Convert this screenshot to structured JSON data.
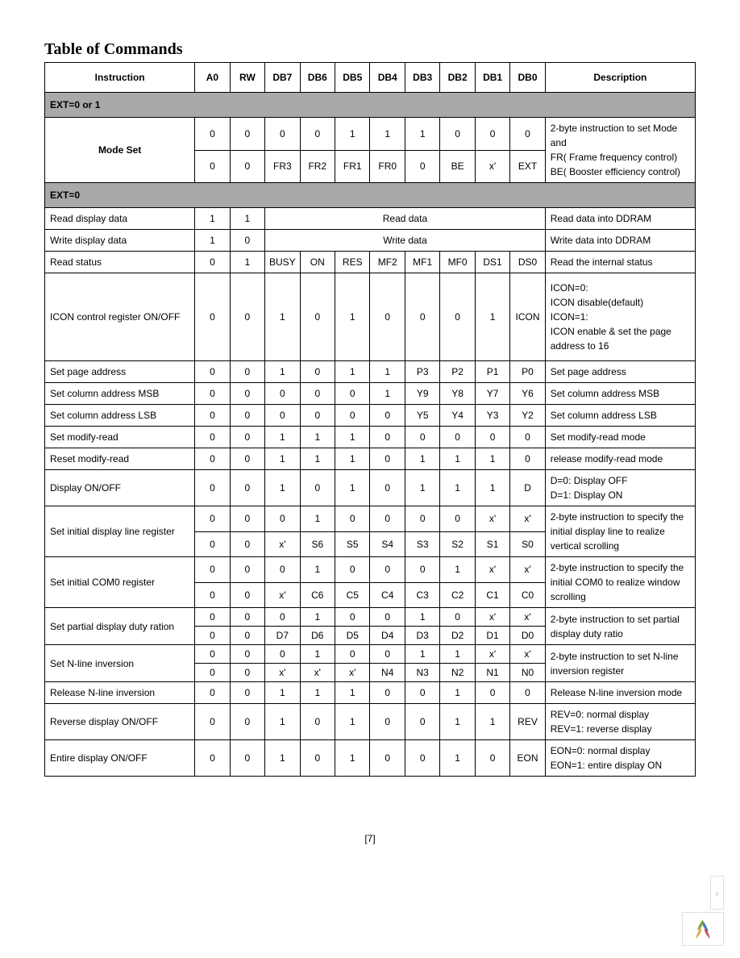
{
  "title": "Table of Commands",
  "page_number": "[7]",
  "headers": [
    "Instruction",
    "A0",
    "RW",
    "DB7",
    "DB6",
    "DB5",
    "DB4",
    "DB3",
    "DB2",
    "DB1",
    "DB0",
    "Description"
  ],
  "section1": "EXT=0 or 1",
  "mode_set": {
    "label": "Mode Set",
    "row1": [
      "0",
      "0",
      "0",
      "0",
      "1",
      "1",
      "1",
      "0",
      "0",
      "0"
    ],
    "row2": [
      "0",
      "0",
      "FR3",
      "FR2",
      "FR1",
      "FR0",
      "0",
      "BE",
      "x'",
      "EXT"
    ],
    "desc": "2-byte instruction to set Mode and\nFR( Frame frequency control)\nBE( Booster efficiency control)"
  },
  "section2": "EXT=0",
  "rows": [
    {
      "instr": "Read display data",
      "a0": "1",
      "rw": "1",
      "span": "Read data",
      "desc": "Read data into DDRAM"
    },
    {
      "instr": "Write display data",
      "a0": "1",
      "rw": "0",
      "span": "Write data",
      "desc": "Write data into DDRAM"
    },
    {
      "instr": "Read status",
      "a0": "0",
      "rw": "1",
      "bits": [
        "BUSY",
        "ON",
        "RES",
        "MF2",
        "MF1",
        "MF0",
        "DS1",
        "DS0"
      ],
      "desc": "Read the internal status"
    },
    {
      "instr": "ICON control register ON/OFF",
      "a0": "0",
      "rw": "0",
      "bits": [
        "1",
        "0",
        "1",
        "0",
        "0",
        "0",
        "1",
        "ICON"
      ],
      "desc": "ICON=0:\nICON disable(default)\nICON=1:\nICON enable & set the page address to 16",
      "tall": true
    },
    {
      "instr": "Set page address",
      "a0": "0",
      "rw": "0",
      "bits": [
        "1",
        "0",
        "1",
        "1",
        "P3",
        "P2",
        "P1",
        "P0"
      ],
      "desc": "Set page address"
    },
    {
      "instr": "Set column address MSB",
      "a0": "0",
      "rw": "0",
      "bits": [
        "0",
        "0",
        "0",
        "1",
        "Y9",
        "Y8",
        "Y7",
        "Y6"
      ],
      "desc": "Set column address MSB"
    },
    {
      "instr": "Set column address LSB",
      "a0": "0",
      "rw": "0",
      "bits": [
        "0",
        "0",
        "0",
        "0",
        "Y5",
        "Y4",
        "Y3",
        "Y2"
      ],
      "desc": "Set column address LSB"
    },
    {
      "instr": "Set modify-read",
      "a0": "0",
      "rw": "0",
      "bits": [
        "1",
        "1",
        "1",
        "0",
        "0",
        "0",
        "0",
        "0"
      ],
      "desc": "Set modify-read mode"
    },
    {
      "instr": "Reset modify-read",
      "a0": "0",
      "rw": "0",
      "bits": [
        "1",
        "1",
        "1",
        "0",
        "1",
        "1",
        "1",
        "0"
      ],
      "desc": "release modify-read mode"
    },
    {
      "instr": "Display ON/OFF",
      "a0": "0",
      "rw": "0",
      "bits": [
        "1",
        "0",
        "1",
        "0",
        "1",
        "1",
        "1",
        "D"
      ],
      "desc": "D=0: Display OFF\nD=1: Display ON"
    }
  ],
  "twobyte": [
    {
      "instr": "Set initial display line register",
      "r1": [
        "0",
        "0",
        "0",
        "1",
        "0",
        "0",
        "0",
        "0",
        "x'",
        "x'"
      ],
      "r2": [
        "0",
        "0",
        "x'",
        "S6",
        "S5",
        "S4",
        "S3",
        "S2",
        "S1",
        "S0"
      ],
      "desc": "2-byte instruction to specify the initial display line to realize vertical scrolling"
    },
    {
      "instr": "Set initial COM0 register",
      "r1": [
        "0",
        "0",
        "0",
        "1",
        "0",
        "0",
        "0",
        "1",
        "x'",
        "x'"
      ],
      "r2": [
        "0",
        "0",
        "x'",
        "C6",
        "C5",
        "C4",
        "C3",
        "C2",
        "C1",
        "C0"
      ],
      "desc": "2-byte instruction to specify the initial COM0 to realize window scrolling"
    },
    {
      "instr": "Set partial display duty ration",
      "r1": [
        "0",
        "0",
        "0",
        "1",
        "0",
        "0",
        "1",
        "0",
        "x'",
        "x'"
      ],
      "r2": [
        "0",
        "0",
        "D7",
        "D6",
        "D5",
        "D4",
        "D3",
        "D2",
        "D1",
        "D0"
      ],
      "desc": "2-byte instruction to set partial display duty ratio"
    },
    {
      "instr": "Set N-line inversion",
      "r1": [
        "0",
        "0",
        "0",
        "1",
        "0",
        "0",
        "1",
        "1",
        "x'",
        "x'"
      ],
      "r2": [
        "0",
        "0",
        "x'",
        "x'",
        "x'",
        "N4",
        "N3",
        "N2",
        "N1",
        "N0"
      ],
      "desc": "2-byte instruction to set N-line inversion register"
    }
  ],
  "tail": [
    {
      "instr": "Release N-line inversion",
      "a0": "0",
      "rw": "0",
      "bits": [
        "1",
        "1",
        "1",
        "0",
        "0",
        "1",
        "0",
        "0"
      ],
      "desc": "Release N-line inversion mode"
    },
    {
      "instr": "Reverse display ON/OFF",
      "a0": "0",
      "rw": "0",
      "bits": [
        "1",
        "0",
        "1",
        "0",
        "0",
        "1",
        "1",
        "REV"
      ],
      "desc": "REV=0: normal display\nREV=1: reverse display"
    },
    {
      "instr": "Entire display ON/OFF",
      "a0": "0",
      "rw": "0",
      "bits": [
        "1",
        "0",
        "1",
        "0",
        "0",
        "1",
        "0",
        "EON"
      ],
      "desc": "EON=0: normal display\nEON=1: entire display ON"
    }
  ]
}
